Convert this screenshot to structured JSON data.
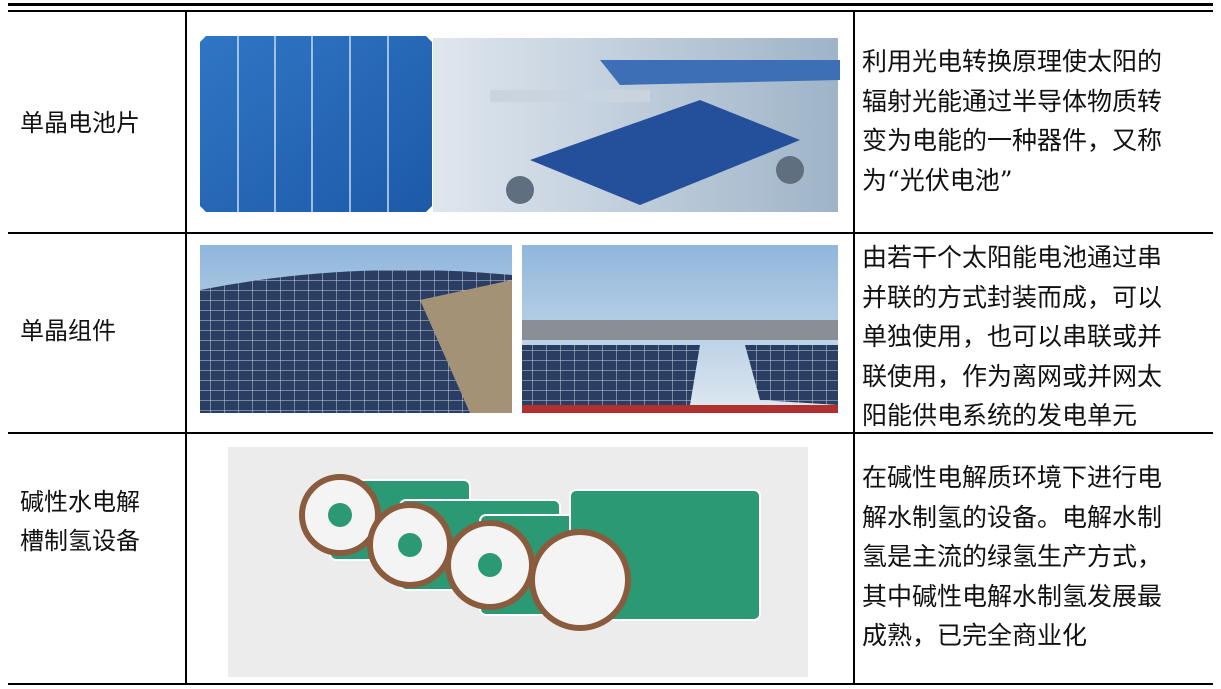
{
  "table": {
    "rows": [
      {
        "name": [
          "单晶电池片"
        ],
        "description": [
          "利用光电转换原理使太阳的",
          "辐射光能通过半导体物质转",
          "变为电能的一种器件，又称",
          "为“光伏电池”"
        ]
      },
      {
        "name": [
          "单晶组件"
        ],
        "description": [
          "由若干个太阳能电池通过串",
          "并联的方式封装而成，可以",
          "单独使用，也可以串联或并",
          "联使用，作为离网或并网太",
          "阳能供电系统的发电单元"
        ]
      },
      {
        "name": [
          "碱性水电解",
          "槽制氢设备"
        ],
        "description": [
          "在碱性电解质环境下进行电",
          "解水制氢的设备。电解水制",
          "氢是主流的绿氢生产方式，",
          "其中碱性电解水制氢发展最",
          "成熟，已完全商业化"
        ]
      }
    ]
  }
}
